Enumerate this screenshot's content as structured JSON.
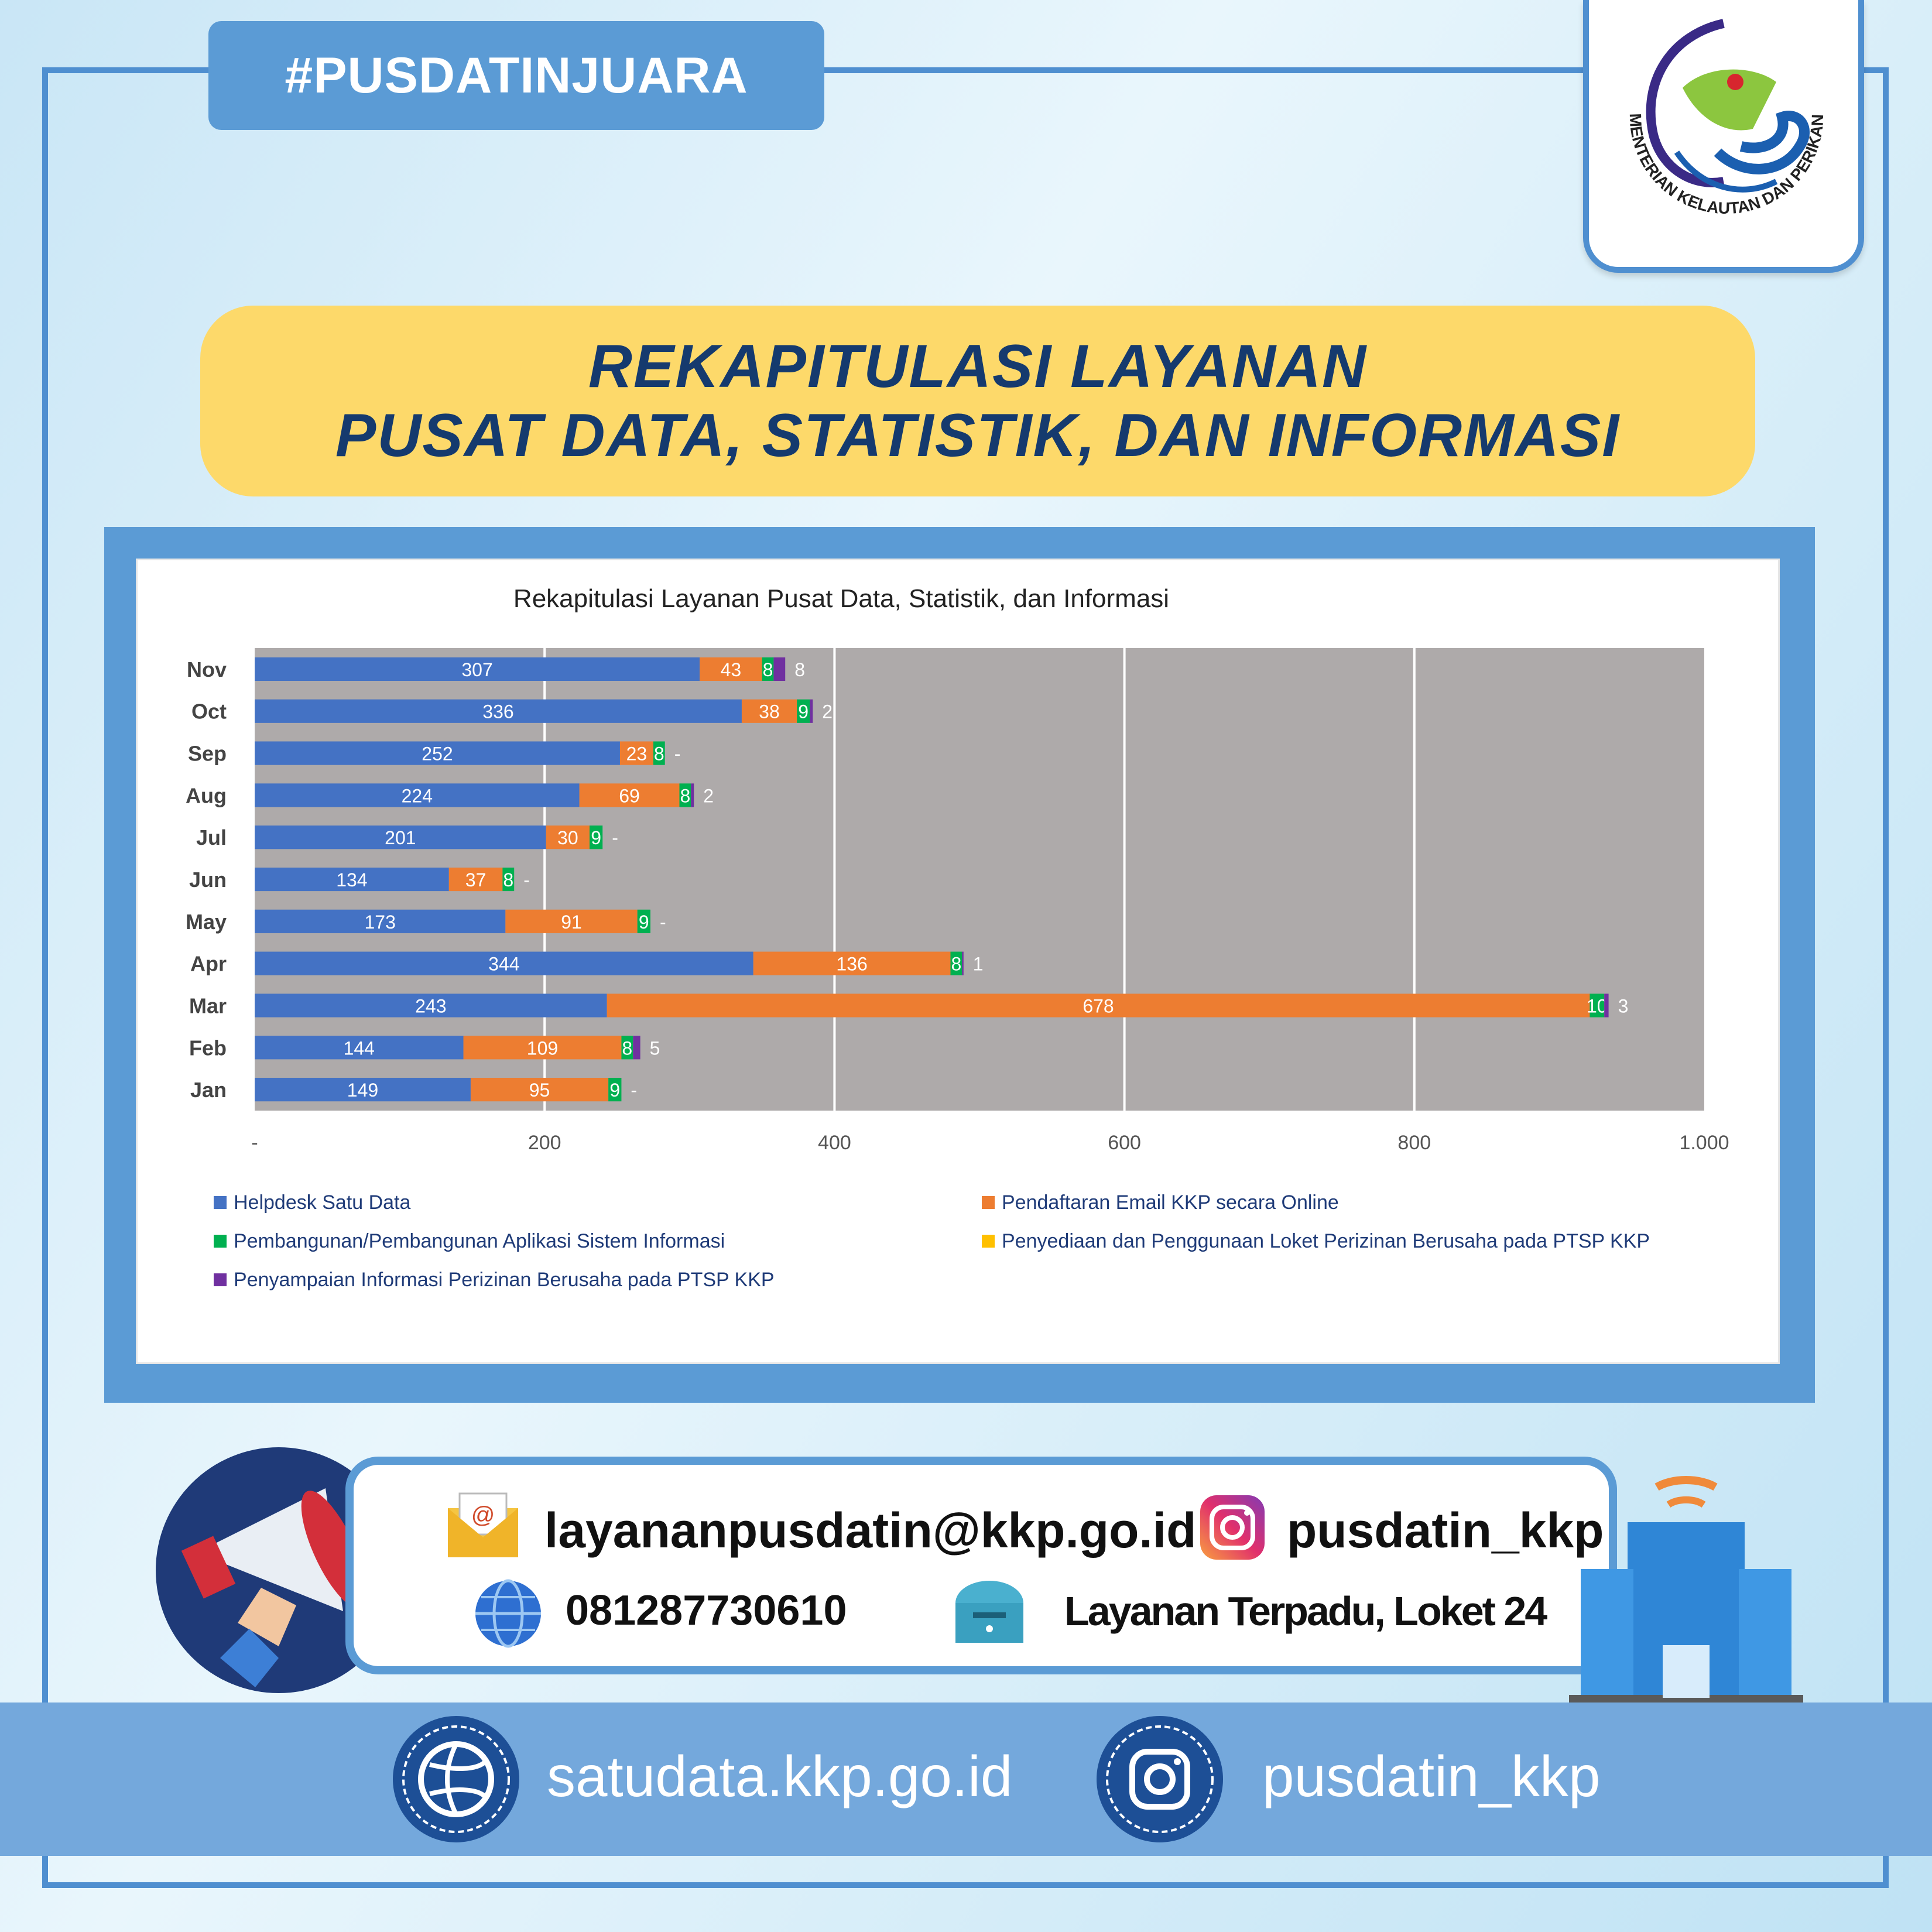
{
  "header": {
    "hashtag": "#PUSDATINJUARA",
    "logo_text": "KEMENTERIAN KELAUTAN DAN PERIKANAN"
  },
  "banner": {
    "line1": "REKAPITULASI LAYANAN",
    "line2": "PUSAT DATA, STATISTIK, DAN INFORMASI"
  },
  "chart_data": {
    "type": "bar",
    "orientation": "horizontal",
    "stacked": true,
    "title": "Rekapitulasi Layanan Pusat Data, Statistik, dan Informasi",
    "categories": [
      "Nov",
      "Oct",
      "Sep",
      "Aug",
      "Jul",
      "Jun",
      "May",
      "Apr",
      "Mar",
      "Feb",
      "Jan"
    ],
    "xlim": [
      0,
      1000
    ],
    "x_ticks": [
      "-",
      "200",
      "400",
      "600",
      "800",
      "1.000"
    ],
    "grid": true,
    "legend_position": "bottom",
    "series": [
      {
        "name": "Helpdesk Satu Data",
        "color": "#4472c4",
        "values": [
          307,
          336,
          252,
          224,
          201,
          134,
          173,
          344,
          243,
          144,
          149
        ],
        "labels": [
          "307",
          "336",
          "252",
          "224",
          "201",
          "134",
          "173",
          "344",
          "243",
          "144",
          "149"
        ]
      },
      {
        "name": "Pendaftaran Email KKP secara Online",
        "color": "#ed7d31",
        "values": [
          43,
          38,
          23,
          69,
          30,
          37,
          91,
          136,
          678,
          109,
          95
        ],
        "labels": [
          "43",
          "38",
          "23",
          "69",
          "30",
          "37",
          "91",
          "136",
          "678",
          "109",
          "95"
        ]
      },
      {
        "name": "Pembangunan/Pembangunan Aplikasi Sistem Informasi",
        "color": "#00b050",
        "values": [
          8,
          9,
          8,
          8,
          9,
          8,
          9,
          8,
          10,
          8,
          9
        ],
        "labels": [
          "8",
          "9",
          "8",
          "8",
          "9",
          "8",
          "9",
          "8",
          "10",
          "8",
          "9"
        ]
      },
      {
        "name": "Penyediaan dan Penggunaan Loket Perizinan Berusaha pada PTSP KKP",
        "color": "#ffc000",
        "values": [
          0,
          0,
          0,
          0,
          0,
          0,
          0,
          0,
          0,
          0,
          0
        ],
        "labels": [
          "",
          "",
          "",
          "",
          "",
          "",
          "",
          "",
          "",
          "",
          ""
        ]
      },
      {
        "name": "Penyampaian Informasi Perizinan Berusaha pada PTSP KKP",
        "color": "#7030a0",
        "values": [
          8,
          2,
          0,
          2,
          0,
          0,
          0,
          1,
          3,
          5,
          0
        ],
        "labels": [
          "8",
          "2",
          "-",
          "2",
          "-",
          "-",
          "-",
          "1",
          "3",
          "5",
          "-"
        ]
      }
    ]
  },
  "contacts": {
    "email": "layananpusdatin@kkp.go.id",
    "instagram": "pusdatin_kkp",
    "phone": "081287730610",
    "location": "Layanan Terpadu, Loket 24"
  },
  "footer": {
    "website": "satudata.kkp.go.id",
    "instagram": "pusdatin_kkp"
  },
  "icons": [
    "mail-icon",
    "instagram-icon",
    "globe-icon",
    "mailbox-icon",
    "megaphone-icon",
    "building-icon",
    "web-icon"
  ]
}
